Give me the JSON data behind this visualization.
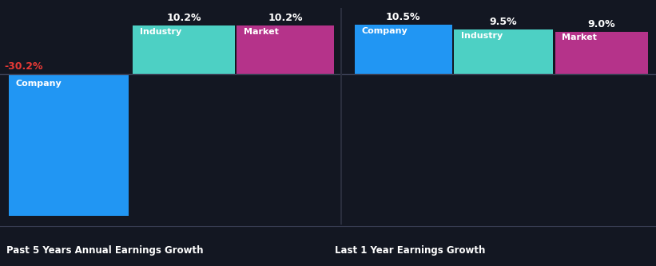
{
  "background_color": "#131722",
  "left_title": "Past 5 Years Annual Earnings Growth",
  "right_title": "Last 1 Year Earnings Growth",
  "left_values": {
    "Company": -30.2,
    "Industry": 10.2,
    "Market": 10.2
  },
  "right_values": {
    "Company": 10.5,
    "Industry": 9.5,
    "Market": 9.0
  },
  "colors": {
    "Company": "#2196f3",
    "Industry": "#4dd0c4",
    "Market": "#b5338a"
  },
  "label_color_negative": "#e53935",
  "label_color_positive": "#ffffff",
  "bar_label_color": "#ffffff",
  "title_color": "#ffffff",
  "separator_color": "#2a2e3d",
  "zero_line_color": "#3a3f55"
}
